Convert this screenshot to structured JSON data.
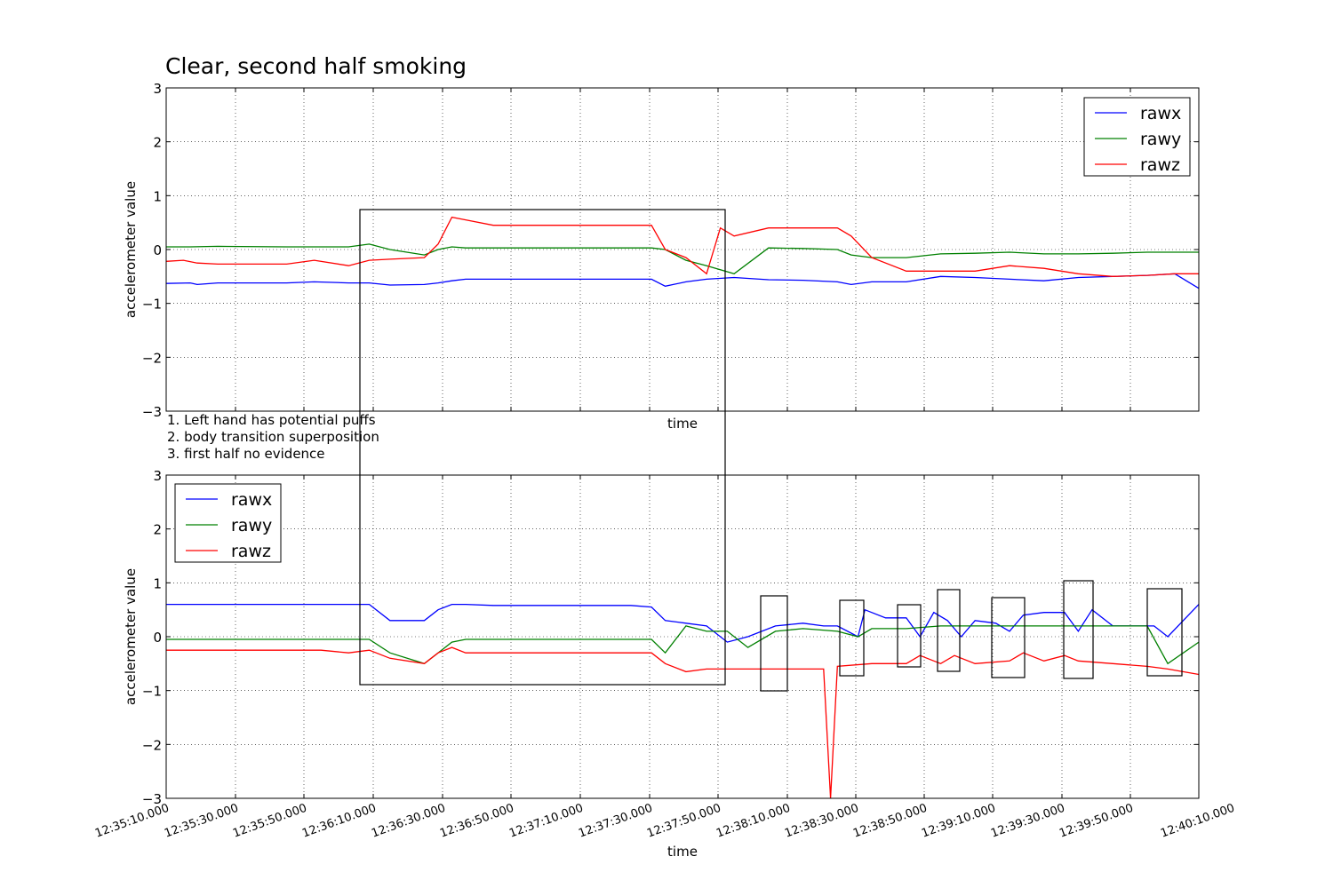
{
  "chart_data": [
    {
      "type": "line",
      "title": "Clear, second half smoking",
      "xlabel": "time",
      "ylabel": "accelerometer value",
      "ylim": [
        -3,
        3
      ],
      "xlim": [
        "12:35:05.000",
        "12:40:05.000"
      ],
      "yticks": [
        "3",
        "2",
        "1",
        "0",
        "−1",
        "−2",
        "−3"
      ],
      "grid": true,
      "legend": "top-right",
      "series": [
        {
          "name": "rawx",
          "color": "#0000ff",
          "x": [
            "12:35:05",
            "12:35:12",
            "12:35:14",
            "12:35:20",
            "12:35:40",
            "12:35:48",
            "12:35:58",
            "12:36:04",
            "12:36:10",
            "12:36:20",
            "12:36:24",
            "12:36:28",
            "12:36:32",
            "12:36:40",
            "12:37:00",
            "12:37:20",
            "12:37:26",
            "12:37:30",
            "12:37:36",
            "12:37:42",
            "12:37:50",
            "12:38:00",
            "12:38:10",
            "12:38:20",
            "12:38:24",
            "12:38:30",
            "12:38:40",
            "12:38:50",
            "12:39:00",
            "12:39:10",
            "12:39:20",
            "12:39:30",
            "12:39:40",
            "12:39:50",
            "12:39:58",
            "12:40:05"
          ],
          "values": [
            -0.63,
            -0.62,
            -0.65,
            -0.62,
            -0.62,
            -0.6,
            -0.62,
            -0.62,
            -0.66,
            -0.65,
            -0.62,
            -0.58,
            -0.55,
            -0.55,
            -0.55,
            -0.55,
            -0.55,
            -0.68,
            -0.6,
            -0.55,
            -0.52,
            -0.56,
            -0.57,
            -0.6,
            -0.65,
            -0.6,
            -0.6,
            -0.5,
            -0.52,
            -0.55,
            -0.58,
            -0.52,
            -0.5,
            -0.48,
            -0.45,
            -0.72
          ]
        },
        {
          "name": "rawy",
          "color": "#008000",
          "x": [
            "12:35:05",
            "12:35:12",
            "12:35:20",
            "12:35:40",
            "12:35:58",
            "12:36:04",
            "12:36:10",
            "12:36:20",
            "12:36:24",
            "12:36:28",
            "12:36:32",
            "12:36:40",
            "12:37:00",
            "12:37:20",
            "12:37:26",
            "12:37:30",
            "12:37:36",
            "12:37:42",
            "12:37:50",
            "12:38:00",
            "12:38:10",
            "12:38:20",
            "12:38:24",
            "12:38:30",
            "12:38:40",
            "12:38:50",
            "12:39:00",
            "12:39:10",
            "12:39:20",
            "12:39:30",
            "12:39:40",
            "12:39:50",
            "12:39:58",
            "12:40:05"
          ],
          "values": [
            0.05,
            0.05,
            0.06,
            0.05,
            0.05,
            0.1,
            0.0,
            -0.1,
            0.0,
            0.05,
            0.03,
            0.03,
            0.03,
            0.03,
            0.03,
            0.0,
            -0.2,
            -0.3,
            -0.45,
            0.03,
            0.02,
            0.0,
            -0.1,
            -0.15,
            -0.15,
            -0.08,
            -0.07,
            -0.05,
            -0.08,
            -0.08,
            -0.07,
            -0.05,
            -0.05,
            -0.05
          ]
        },
        {
          "name": "rawz",
          "color": "#ff0000",
          "x": [
            "12:35:05",
            "12:35:10",
            "12:35:14",
            "12:35:20",
            "12:35:40",
            "12:35:48",
            "12:35:58",
            "12:36:04",
            "12:36:10",
            "12:36:20",
            "12:36:24",
            "12:36:28",
            "12:36:32",
            "12:36:40",
            "12:37:00",
            "12:37:20",
            "12:37:26",
            "12:37:30",
            "12:37:36",
            "12:37:42",
            "12:37:46",
            "12:37:50",
            "12:38:00",
            "12:38:10",
            "12:38:20",
            "12:38:24",
            "12:38:30",
            "12:38:40",
            "12:38:50",
            "12:39:00",
            "12:39:10",
            "12:39:20",
            "12:39:30",
            "12:39:40",
            "12:39:50",
            "12:39:58",
            "12:40:05"
          ],
          "values": [
            -0.22,
            -0.2,
            -0.25,
            -0.27,
            -0.27,
            -0.2,
            -0.3,
            -0.2,
            -0.18,
            -0.15,
            0.1,
            0.6,
            0.55,
            0.45,
            0.45,
            0.45,
            0.45,
            0.0,
            -0.15,
            -0.45,
            0.4,
            0.25,
            0.4,
            0.4,
            0.4,
            0.25,
            -0.15,
            -0.4,
            -0.4,
            -0.4,
            -0.3,
            -0.35,
            -0.45,
            -0.5,
            -0.48,
            -0.45,
            -0.45
          ]
        }
      ]
    },
    {
      "type": "line",
      "xlabel": "time",
      "ylabel": "accelerometer value",
      "ylim": [
        -3,
        3
      ],
      "xlim": [
        "12:35:05.000",
        "12:40:05.000"
      ],
      "yticks": [
        "3",
        "2",
        "1",
        "0",
        "−1",
        "−2",
        "−3"
      ],
      "xticks": [
        "12:35:10.000",
        "12:35:30.000",
        "12:35:50.000",
        "12:36:10.000",
        "12:36:30.000",
        "12:36:50.000",
        "12:37:10.000",
        "12:37:30.000",
        "12:37:50.000",
        "12:38:10.000",
        "12:38:30.000",
        "12:38:50.000",
        "12:39:10.000",
        "12:39:30.000",
        "12:39:50.000",
        "12:40:10.000"
      ],
      "grid": true,
      "legend": "top-left",
      "series": [
        {
          "name": "rawx",
          "color": "#0000ff",
          "x": [
            "12:35:05",
            "12:35:20",
            "12:35:40",
            "12:35:50",
            "12:35:58",
            "12:36:04",
            "12:36:10",
            "12:36:20",
            "12:36:24",
            "12:36:28",
            "12:36:32",
            "12:36:40",
            "12:37:00",
            "12:37:20",
            "12:37:26",
            "12:37:30",
            "12:37:36",
            "12:37:42",
            "12:37:48",
            "12:37:54",
            "12:38:02",
            "12:38:10",
            "12:38:16",
            "12:38:20",
            "12:38:26",
            "12:38:28",
            "12:38:34",
            "12:38:40",
            "12:38:44",
            "12:38:48",
            "12:38:52",
            "12:38:56",
            "12:39:00",
            "12:39:06",
            "12:39:10",
            "12:39:14",
            "12:39:20",
            "12:39:26",
            "12:39:30",
            "12:39:34",
            "12:39:40",
            "12:39:46",
            "12:39:52",
            "12:39:56",
            "12:40:05"
          ],
          "values": [
            0.6,
            0.6,
            0.6,
            0.6,
            0.6,
            0.6,
            0.3,
            0.3,
            0.5,
            0.6,
            0.6,
            0.58,
            0.58,
            0.58,
            0.55,
            0.3,
            0.25,
            0.2,
            -0.1,
            0.0,
            0.2,
            0.25,
            0.2,
            0.2,
            0.0,
            0.5,
            0.35,
            0.35,
            0.0,
            0.45,
            0.3,
            0.0,
            0.3,
            0.25,
            0.1,
            0.4,
            0.45,
            0.45,
            0.1,
            0.5,
            0.2,
            0.2,
            0.2,
            0.0,
            0.6
          ]
        },
        {
          "name": "rawy",
          "color": "#008000",
          "x": [
            "12:35:05",
            "12:35:20",
            "12:35:40",
            "12:35:58",
            "12:36:04",
            "12:36:10",
            "12:36:20",
            "12:36:24",
            "12:36:28",
            "12:36:32",
            "12:36:40",
            "12:37:00",
            "12:37:20",
            "12:37:26",
            "12:37:30",
            "12:37:36",
            "12:37:42",
            "12:37:48",
            "12:37:54",
            "12:38:02",
            "12:38:10",
            "12:38:20",
            "12:38:26",
            "12:38:30",
            "12:38:40",
            "12:38:50",
            "12:39:00",
            "12:39:10",
            "12:39:20",
            "12:39:30",
            "12:39:40",
            "12:39:50",
            "12:39:56",
            "12:40:05"
          ],
          "values": [
            -0.05,
            -0.05,
            -0.05,
            -0.05,
            -0.05,
            -0.3,
            -0.5,
            -0.3,
            -0.1,
            -0.05,
            -0.05,
            -0.05,
            -0.05,
            -0.05,
            -0.3,
            0.2,
            0.1,
            0.1,
            -0.2,
            0.1,
            0.15,
            0.1,
            0.0,
            0.15,
            0.15,
            0.2,
            0.2,
            0.2,
            0.2,
            0.2,
            0.2,
            0.2,
            -0.5,
            -0.1
          ]
        },
        {
          "name": "rawz",
          "color": "#ff0000",
          "x": [
            "12:35:05",
            "12:35:20",
            "12:35:40",
            "12:35:50",
            "12:35:58",
            "12:36:04",
            "12:36:10",
            "12:36:20",
            "12:36:24",
            "12:36:28",
            "12:36:32",
            "12:36:40",
            "12:37:00",
            "12:37:20",
            "12:37:26",
            "12:37:30",
            "12:37:36",
            "12:37:42",
            "12:37:48",
            "12:37:54",
            "12:38:02",
            "12:38:10",
            "12:38:16",
            "12:38:18",
            "12:38:20",
            "12:38:30",
            "12:38:40",
            "12:38:44",
            "12:38:50",
            "12:38:54",
            "12:39:00",
            "12:39:10",
            "12:39:14",
            "12:39:20",
            "12:39:26",
            "12:39:30",
            "12:39:40",
            "12:39:50",
            "12:39:56",
            "12:40:05"
          ],
          "values": [
            -0.25,
            -0.25,
            -0.25,
            -0.25,
            -0.3,
            -0.25,
            -0.4,
            -0.5,
            -0.3,
            -0.2,
            -0.3,
            -0.3,
            -0.3,
            -0.3,
            -0.3,
            -0.5,
            -0.65,
            -0.6,
            -0.6,
            -0.6,
            -0.6,
            -0.6,
            -0.6,
            -3.0,
            -0.55,
            -0.5,
            -0.5,
            -0.35,
            -0.5,
            -0.35,
            -0.5,
            -0.45,
            -0.3,
            -0.45,
            -0.35,
            -0.45,
            -0.5,
            -0.55,
            -0.6,
            -0.7
          ]
        }
      ]
    }
  ],
  "annotations": [
    "1. Left hand has potential puffs",
    "2. body transition superposition",
    "3. first half no evidence"
  ]
}
